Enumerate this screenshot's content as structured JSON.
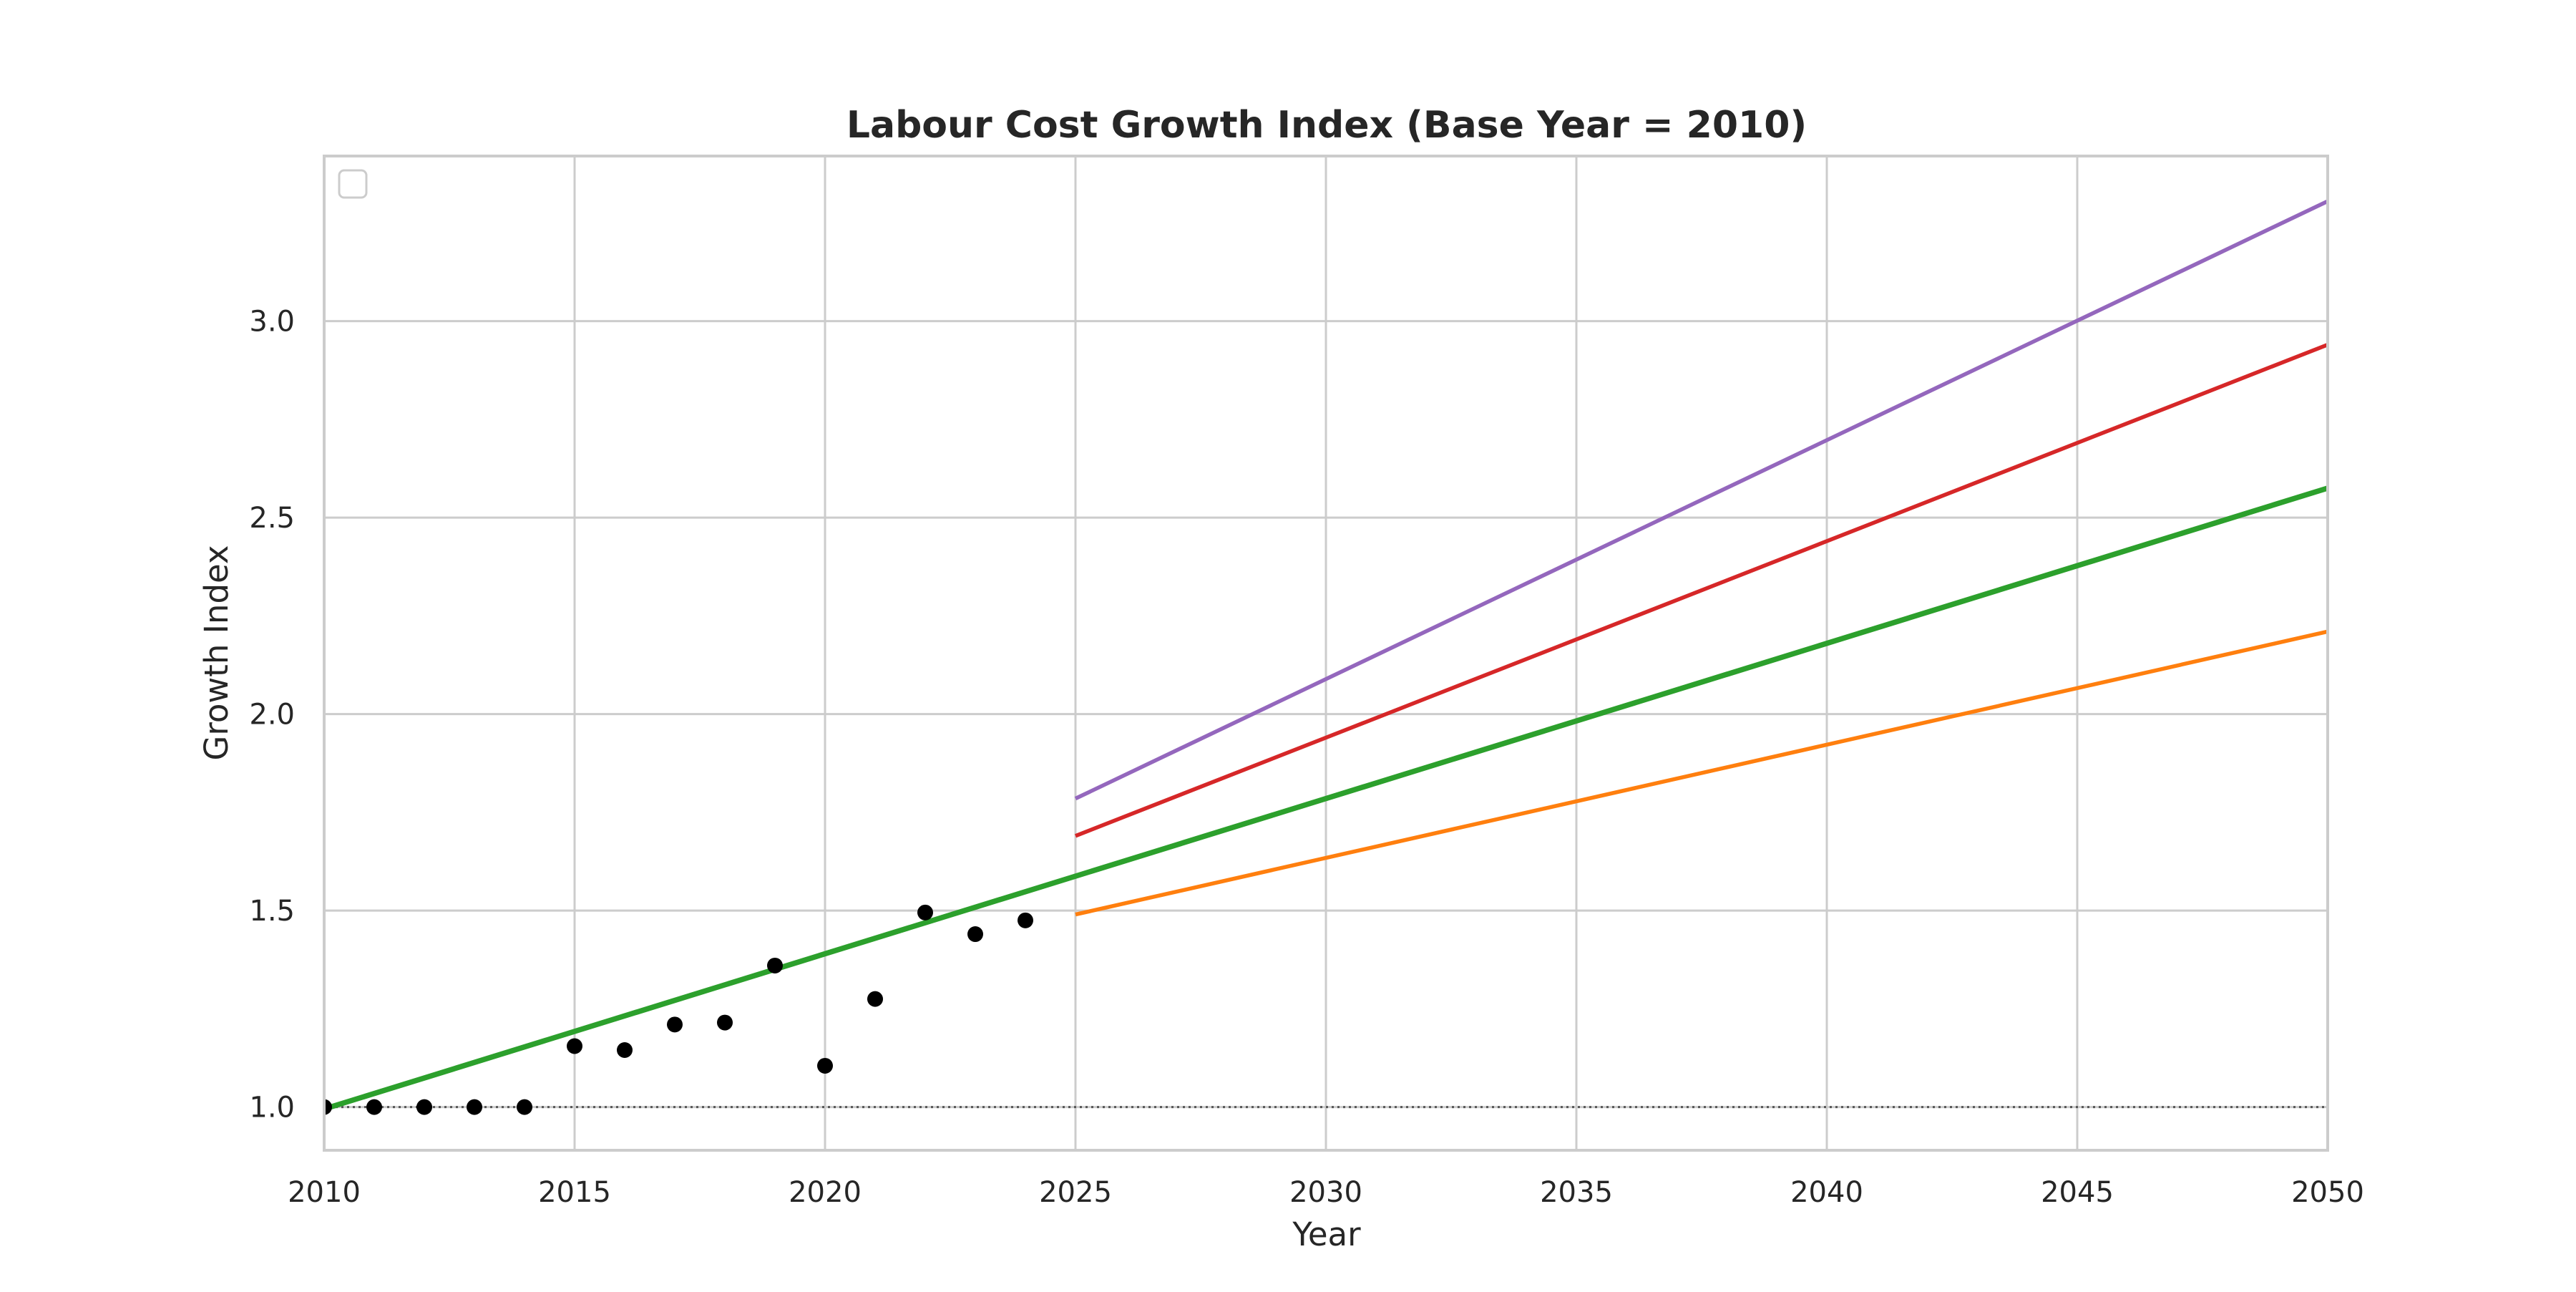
{
  "chart_data": {
    "type": "line",
    "title": "Labour Cost Growth Index (Base Year = 2010)",
    "xlabel": "Year",
    "ylabel": "Growth Index",
    "xlim": [
      2010,
      2050
    ],
    "ylim": [
      0.89,
      3.42
    ],
    "x_ticks": [
      2010,
      2015,
      2020,
      2025,
      2030,
      2035,
      2040,
      2045,
      2050
    ],
    "y_ticks": [
      1.0,
      1.5,
      2.0,
      2.5,
      3.0
    ],
    "x_tick_labels": [
      "2010",
      "2015",
      "2020",
      "2025",
      "2030",
      "2035",
      "2040",
      "2045",
      "2050"
    ],
    "y_tick_labels": [
      "1.0",
      "1.5",
      "2.0",
      "2.5",
      "3.0"
    ],
    "grid": true,
    "legend": "top-left (empty)",
    "baseline": {
      "y": 1.0,
      "style": "dotted",
      "color": "#555555"
    },
    "observed": {
      "color": "#000000",
      "points": [
        [
          2010,
          1.0
        ],
        [
          2011,
          1.0
        ],
        [
          2012,
          1.0
        ],
        [
          2013,
          1.0
        ],
        [
          2014,
          1.0
        ],
        [
          2015,
          1.155
        ],
        [
          2016,
          1.145
        ],
        [
          2017,
          1.21
        ],
        [
          2018,
          1.215
        ],
        [
          2019,
          1.36
        ],
        [
          2020,
          1.105
        ],
        [
          2021,
          1.275
        ],
        [
          2022,
          1.495
        ],
        [
          2023,
          1.44
        ],
        [
          2024,
          1.475
        ]
      ]
    },
    "series": [
      {
        "color": "#2ca02c",
        "width": "thick",
        "points": [
          [
            2010,
            0.995
          ],
          [
            2050,
            2.575
          ]
        ]
      },
      {
        "color": "#ff7f0e",
        "width": "normal",
        "points": [
          [
            2025,
            1.49
          ],
          [
            2050,
            2.21
          ]
        ]
      },
      {
        "color": "#d62728",
        "width": "normal",
        "points": [
          [
            2025,
            1.69
          ],
          [
            2050,
            2.94
          ]
        ]
      },
      {
        "color": "#9467bd",
        "width": "normal",
        "points": [
          [
            2025,
            1.785
          ],
          [
            2050,
            3.305
          ]
        ]
      }
    ]
  }
}
